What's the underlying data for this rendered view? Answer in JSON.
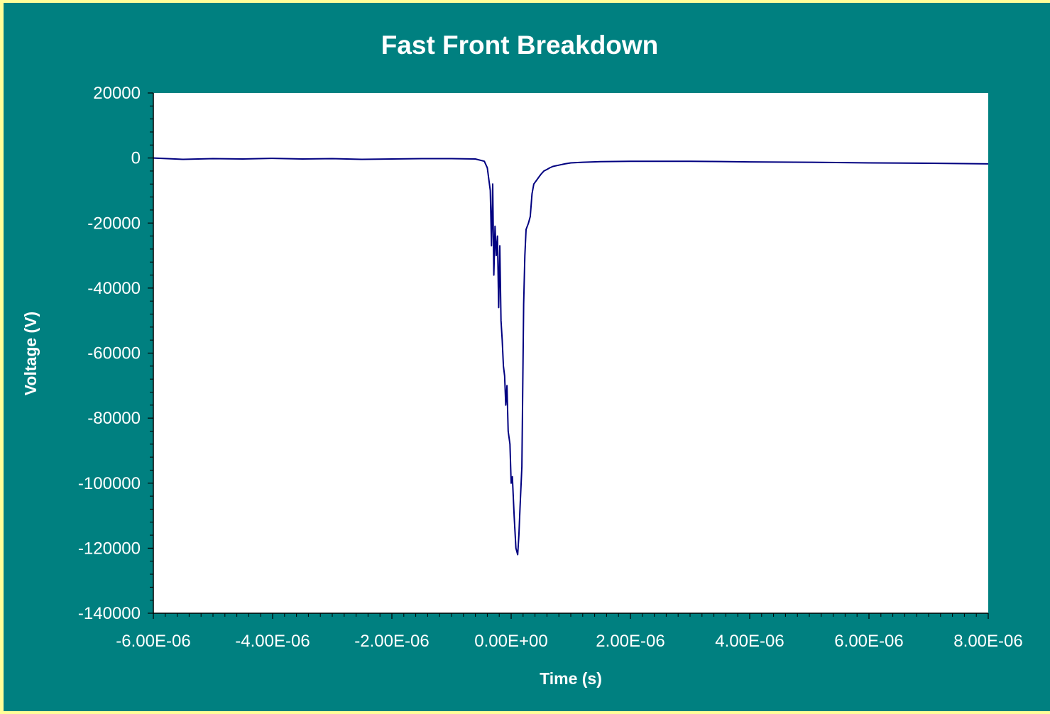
{
  "colors": {
    "outer_background": "#ffff99",
    "chart_background": "#008080",
    "plot_background": "#ffffff",
    "series_line": "#000080",
    "text": "#ffffff",
    "axis": "#000000"
  },
  "chart_data": {
    "type": "line",
    "title": "Fast Front Breakdown",
    "xlabel": "Time (s)",
    "ylabel": "Voltage (V)",
    "xlim": [
      -6e-06,
      8e-06
    ],
    "ylim": [
      -140000,
      20000
    ],
    "x_ticks": [
      -6e-06,
      -4e-06,
      -2e-06,
      0,
      2e-06,
      4e-06,
      6e-06,
      8e-06
    ],
    "x_tick_labels": [
      "-6.00E-06",
      "-4.00E-06",
      "-2.00E-06",
      "0.00E+00",
      "2.00E-06",
      "4.00E-06",
      "6.00E-06",
      "8.00E-06"
    ],
    "y_ticks": [
      20000,
      0,
      -20000,
      -40000,
      -60000,
      -80000,
      -100000,
      -120000,
      -140000
    ],
    "y_tick_labels": [
      "20000",
      "0",
      "-20000",
      "-40000",
      "-60000",
      "-80000",
      "-100000",
      "-120000",
      "-140000"
    ],
    "grid": false,
    "legend": "none",
    "series": [
      {
        "x": [
          -6e-06,
          -5.5e-06,
          -5e-06,
          -4.5e-06,
          -4e-06,
          -3.5e-06,
          -3e-06,
          -2.5e-06,
          -2e-06,
          -1.5e-06,
          -1e-06,
          -6e-07,
          -4.5e-07,
          -4e-07,
          -3.5e-07,
          -3.3e-07,
          -3.1e-07,
          -2.9e-07,
          -2.7e-07,
          -2.5e-07,
          -2.3e-07,
          -2.1e-07,
          -1.9e-07,
          -1.7e-07,
          -1.5e-07,
          -1.3e-07,
          -1.1e-07,
          -9e-08,
          -7e-08,
          -5e-08,
          -2e-08,
          0.0,
          2e-08,
          5e-08,
          8e-08,
          1.1e-07,
          1.3e-07,
          1.5e-07,
          1.8e-07,
          2.1e-07,
          2.3e-07,
          2.5e-07,
          2.7e-07,
          2.9e-07,
          3.2e-07,
          3.5e-07,
          3.8e-07,
          4.2e-07,
          4.6e-07,
          5e-07,
          5.5e-07,
          6e-07,
          6.5e-07,
          7e-07,
          8e-07,
          9e-07,
          1e-06,
          1.2e-06,
          1.5e-06,
          2e-06,
          3e-06,
          4e-06,
          5e-06,
          6e-06,
          7e-06,
          8e-06
        ],
        "y": [
          0,
          -400,
          -200,
          -300,
          -100,
          -300,
          -200,
          -400,
          -300,
          -200,
          -200,
          -300,
          -1000,
          -3000,
          -10000,
          -27000,
          -8000,
          -36000,
          -21000,
          -30000,
          -24000,
          -46000,
          -27000,
          -50000,
          -56000,
          -64000,
          -67000,
          -76000,
          -70000,
          -84000,
          -88000,
          -100000,
          -98000,
          -110000,
          -120000,
          -122000,
          -116000,
          -107000,
          -95000,
          -45000,
          -30000,
          -22000,
          -21000,
          -20000,
          -18000,
          -11000,
          -8000,
          -7000,
          -6000,
          -5000,
          -4000,
          -3500,
          -3000,
          -2600,
          -2200,
          -1800,
          -1500,
          -1300,
          -1100,
          -1000,
          -1000,
          -1200,
          -1300,
          -1500,
          -1600,
          -1800
        ]
      }
    ]
  }
}
